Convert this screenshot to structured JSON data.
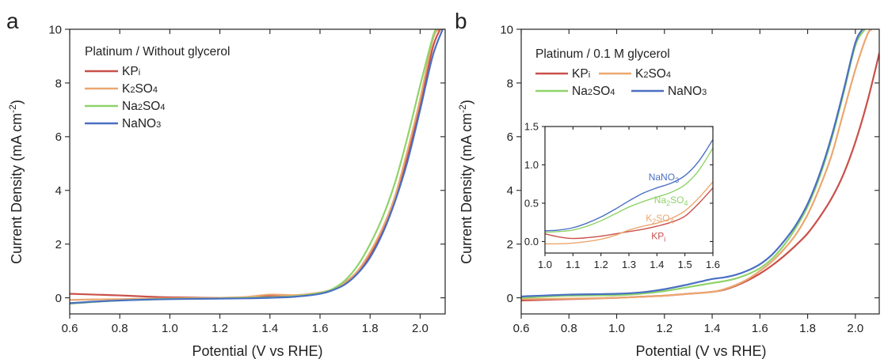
{
  "figure": {
    "panels": [
      {
        "id": "a",
        "panel_label": "a",
        "legend_title": "Platinum / Without glycerol",
        "xlabel": "Potential (V vs RHE)",
        "ylabel_main": "Current Density (mA cm",
        "ylabel_sup": "-2",
        "ylabel_end": ")"
      },
      {
        "id": "b",
        "panel_label": "b",
        "legend_title": "Platinum / 0.1 M glycerol",
        "xlabel": "Potential (V vs RHE)",
        "ylabel_main": "Current Density (mA cm",
        "ylabel_sup": "-2",
        "ylabel_end": ")"
      }
    ]
  },
  "colors": {
    "KPi": "#c9504a",
    "K2SO4": "#eba770",
    "Na2SO4": "#8fd36a",
    "NaNO3": "#4a6fc2"
  },
  "chart_data": [
    {
      "type": "line",
      "panel": "a",
      "title": "",
      "legend_title": "Platinum / Without glycerol",
      "legend_position": "top-left",
      "xlabel": "Potential (V vs RHE)",
      "ylabel": "Current Density (mA cm-2)",
      "xlim": [
        0.6,
        2.1
      ],
      "ylim": [
        -0.6,
        10
      ],
      "xticks": [
        "0.6",
        "0.8",
        "1.0",
        "1.2",
        "1.4",
        "1.6",
        "1.8",
        "2.0"
      ],
      "yticks": [
        "0",
        "2",
        "4",
        "6",
        "8",
        "10"
      ],
      "series": [
        {
          "name": "KPi",
          "label_base": "KP",
          "label_sub": "i",
          "color": "#c9504a",
          "x": [
            0.6,
            0.7,
            0.8,
            0.9,
            1.0,
            1.2,
            1.3,
            1.4,
            1.5,
            1.6,
            1.65,
            1.7,
            1.75,
            1.8,
            1.85,
            1.9,
            1.95,
            2.0,
            2.05,
            2.08
          ],
          "y": [
            0.15,
            0.12,
            0.09,
            0.05,
            0.02,
            0.0,
            0.02,
            0.08,
            0.08,
            0.18,
            0.3,
            0.55,
            0.95,
            1.6,
            2.5,
            3.7,
            5.3,
            7.2,
            9.3,
            10.0
          ]
        },
        {
          "name": "K2SO4",
          "label_base": "K",
          "label_sub": "2",
          "label_end": "SO",
          "label_sub2": "4",
          "color": "#eba770",
          "x": [
            0.6,
            0.7,
            0.8,
            0.9,
            1.0,
            1.2,
            1.3,
            1.4,
            1.5,
            1.6,
            1.65,
            1.7,
            1.75,
            1.8,
            1.85,
            1.9,
            1.95,
            2.0,
            2.05,
            2.075
          ],
          "y": [
            -0.08,
            -0.06,
            -0.05,
            -0.03,
            -0.02,
            0.0,
            0.03,
            0.12,
            0.1,
            0.2,
            0.32,
            0.58,
            1.0,
            1.7,
            2.6,
            3.8,
            5.5,
            7.4,
            9.6,
            10.0
          ]
        },
        {
          "name": "Na2SO4",
          "label_base": "Na",
          "label_sub": "2",
          "label_end": "SO",
          "label_sub2": "4",
          "color": "#8fd36a",
          "x": [
            0.6,
            0.7,
            0.8,
            0.9,
            1.0,
            1.2,
            1.3,
            1.4,
            1.5,
            1.6,
            1.65,
            1.7,
            1.75,
            1.8,
            1.85,
            1.9,
            1.95,
            2.0,
            2.05,
            2.065
          ],
          "y": [
            -0.22,
            -0.15,
            -0.1,
            -0.06,
            -0.04,
            -0.02,
            0.0,
            0.02,
            0.06,
            0.18,
            0.33,
            0.65,
            1.2,
            2.0,
            3.0,
            4.3,
            6.0,
            7.9,
            9.7,
            10.0
          ]
        },
        {
          "name": "NaNO3",
          "label_base": "NaNO",
          "label_sub": "3",
          "color": "#4a6fc2",
          "x": [
            0.6,
            0.7,
            0.8,
            0.9,
            1.0,
            1.2,
            1.3,
            1.4,
            1.5,
            1.6,
            1.65,
            1.7,
            1.75,
            1.8,
            1.85,
            1.9,
            1.95,
            2.0,
            2.05,
            2.09
          ],
          "y": [
            -0.2,
            -0.14,
            -0.1,
            -0.07,
            -0.05,
            -0.03,
            -0.02,
            0.0,
            0.04,
            0.15,
            0.28,
            0.5,
            0.9,
            1.5,
            2.4,
            3.6,
            5.1,
            7.0,
            9.0,
            10.0
          ]
        }
      ]
    },
    {
      "type": "line",
      "panel": "b",
      "title": "",
      "legend_title": "Platinum / 0.1 M glycerol",
      "legend_position": "top-left",
      "xlabel": "Potential (V vs RHE)",
      "ylabel": "Current Density (mA cm-2)",
      "xlim": [
        0.6,
        2.1
      ],
      "ylim": [
        -0.6,
        10
      ],
      "xticks": [
        "0.6",
        "0.8",
        "1.0",
        "1.2",
        "1.4",
        "1.6",
        "1.8",
        "2.0"
      ],
      "yticks": [
        "0",
        "2",
        "4",
        "6",
        "8",
        "10"
      ],
      "series": [
        {
          "name": "KPi",
          "label_base": "KP",
          "label_sub": "i",
          "color": "#c9504a",
          "x": [
            0.6,
            0.8,
            1.0,
            1.1,
            1.2,
            1.3,
            1.4,
            1.45,
            1.5,
            1.55,
            1.6,
            1.65,
            1.7,
            1.75,
            1.8,
            1.85,
            1.9,
            1.95,
            2.0,
            2.05,
            2.1
          ],
          "y": [
            -0.1,
            -0.05,
            0.0,
            0.04,
            0.08,
            0.15,
            0.22,
            0.3,
            0.45,
            0.65,
            0.9,
            1.2,
            1.55,
            1.95,
            2.4,
            3.0,
            3.7,
            4.6,
            5.8,
            7.3,
            9.1
          ]
        },
        {
          "name": "K2SO4",
          "label_base": "K",
          "label_sub": "2",
          "label_end": "SO",
          "label_sub2": "4",
          "color": "#eba770",
          "x": [
            0.6,
            0.8,
            1.0,
            1.1,
            1.2,
            1.3,
            1.4,
            1.45,
            1.5,
            1.55,
            1.6,
            1.65,
            1.7,
            1.75,
            1.8,
            1.85,
            1.9,
            1.95,
            2.0,
            2.05,
            2.07
          ],
          "y": [
            -0.05,
            -0.03,
            0.0,
            0.04,
            0.08,
            0.15,
            0.22,
            0.32,
            0.48,
            0.7,
            1.0,
            1.35,
            1.8,
            2.35,
            3.1,
            4.1,
            5.3,
            6.9,
            8.5,
            9.8,
            10.0
          ]
        },
        {
          "name": "Na2SO4",
          "label_base": "Na",
          "label_sub": "2",
          "label_end": "SO",
          "label_sub2": "4",
          "color": "#8fd36a",
          "x": [
            0.6,
            0.8,
            1.0,
            1.1,
            1.2,
            1.3,
            1.4,
            1.45,
            1.5,
            1.55,
            1.6,
            1.65,
            1.7,
            1.75,
            1.8,
            1.85,
            1.9,
            1.95,
            2.0,
            2.04
          ],
          "y": [
            0.0,
            0.08,
            0.1,
            0.15,
            0.25,
            0.4,
            0.55,
            0.62,
            0.72,
            0.88,
            1.1,
            1.45,
            1.95,
            2.6,
            3.4,
            4.5,
            5.9,
            7.6,
            9.4,
            10.0
          ]
        },
        {
          "name": "NaNO3",
          "label_base": "NaNO",
          "label_sub": "3",
          "color": "#4a6fc2",
          "x": [
            0.6,
            0.8,
            1.0,
            1.1,
            1.2,
            1.3,
            1.4,
            1.45,
            1.5,
            1.55,
            1.6,
            1.65,
            1.7,
            1.75,
            1.8,
            1.85,
            1.9,
            1.95,
            2.0,
            2.03
          ],
          "y": [
            0.05,
            0.12,
            0.15,
            0.2,
            0.32,
            0.5,
            0.7,
            0.76,
            0.86,
            1.02,
            1.25,
            1.6,
            2.1,
            2.7,
            3.5,
            4.6,
            6.0,
            7.7,
            9.5,
            10.0
          ]
        }
      ]
    },
    {
      "type": "line",
      "panel": "b-inset",
      "title": "",
      "xlim": [
        1.0,
        1.6
      ],
      "ylim": [
        -0.15,
        1.5
      ],
      "xticks": [
        "1.0",
        "1.1",
        "1.2",
        "1.3",
        "1.4",
        "1.5",
        "1.6"
      ],
      "yticks": [
        "0.0",
        "0.5",
        "1.0",
        "1.5"
      ],
      "series": [
        {
          "name": "KPi",
          "label_base": "KP",
          "label_sub": "i",
          "color": "#c9504a",
          "label_at": [
            1.38,
            0.03
          ],
          "x": [
            1.0,
            1.05,
            1.1,
            1.15,
            1.2,
            1.25,
            1.3,
            1.35,
            1.4,
            1.45,
            1.5,
            1.55,
            1.6
          ],
          "y": [
            0.1,
            0.06,
            0.04,
            0.05,
            0.07,
            0.1,
            0.13,
            0.16,
            0.2,
            0.25,
            0.33,
            0.5,
            0.7
          ]
        },
        {
          "name": "K2SO4",
          "label_base": "K",
          "label_sub": "2",
          "label_end": "SO",
          "label_sub2": "4",
          "color": "#eba770",
          "label_at": [
            1.36,
            0.26
          ],
          "x": [
            1.0,
            1.05,
            1.1,
            1.15,
            1.2,
            1.25,
            1.3,
            1.35,
            1.4,
            1.45,
            1.5,
            1.55,
            1.6
          ],
          "y": [
            -0.03,
            -0.03,
            -0.02,
            0.0,
            0.03,
            0.08,
            0.15,
            0.2,
            0.24,
            0.3,
            0.4,
            0.57,
            0.78
          ]
        },
        {
          "name": "Na2SO4",
          "label_base": "Na",
          "label_sub": "2",
          "label_end": "SO",
          "label_sub2": "4",
          "color": "#8fd36a",
          "label_at": [
            1.39,
            0.5
          ],
          "x": [
            1.0,
            1.05,
            1.1,
            1.15,
            1.2,
            1.25,
            1.3,
            1.35,
            1.4,
            1.45,
            1.5,
            1.55,
            1.6
          ],
          "y": [
            0.12,
            0.13,
            0.15,
            0.2,
            0.27,
            0.36,
            0.45,
            0.52,
            0.58,
            0.64,
            0.74,
            0.93,
            1.22
          ]
        },
        {
          "name": "NaNO3",
          "label_base": "NaNO",
          "label_sub": "3",
          "color": "#4a6fc2",
          "label_at": [
            1.37,
            0.8
          ],
          "x": [
            1.0,
            1.05,
            1.1,
            1.15,
            1.2,
            1.25,
            1.3,
            1.35,
            1.4,
            1.45,
            1.5,
            1.55,
            1.6
          ],
          "y": [
            0.14,
            0.15,
            0.18,
            0.24,
            0.32,
            0.42,
            0.53,
            0.63,
            0.7,
            0.76,
            0.86,
            1.05,
            1.33
          ]
        }
      ]
    }
  ]
}
